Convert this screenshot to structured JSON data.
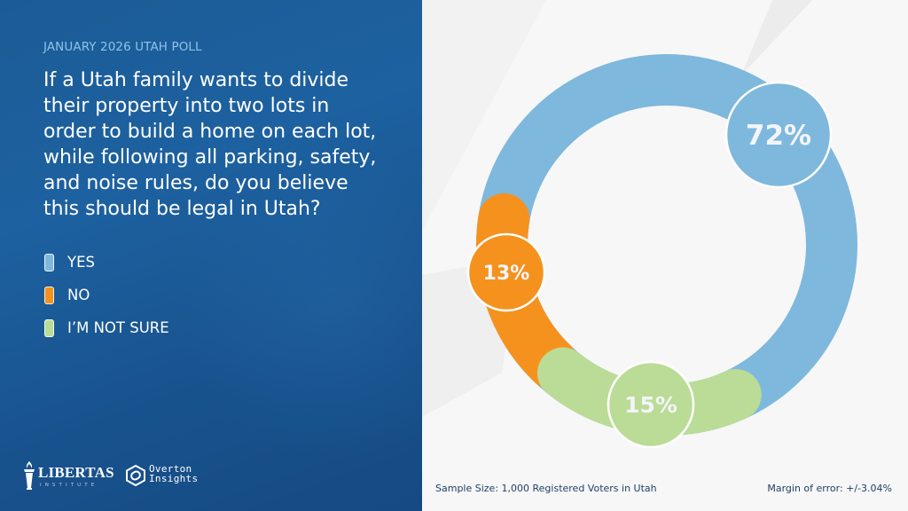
{
  "header": {
    "subtitle": "JANUARY 2026 UTAH POLL",
    "question_lines": [
      "If a Utah family wants to divide",
      "their property into two lots in",
      "order to build a home on each lot,",
      "while following all parking, safety,",
      "and noise rules, do you believe",
      "this should be legal in Utah?"
    ]
  },
  "legend": [
    {
      "label": "YES",
      "color": "#7fb8dd"
    },
    {
      "label": "NO",
      "color": "#f5921e"
    },
    {
      "label": "I’M NOT SURE",
      "color": "#badc96"
    }
  ],
  "logos": {
    "libertas_name": "LIBERTAS",
    "libertas_sub": "INSTITUTE",
    "overton_name": "Overton",
    "overton_sub": "Insights"
  },
  "footer": {
    "sample_size": "Sample Size: 1,000 Registered Voters in Utah",
    "margin_of_error": "Margin of error: +/-3.04%"
  },
  "chart_data": {
    "type": "pie",
    "variant": "donut",
    "title": "If a Utah family wants to divide their property into two lots in order to build a home on each lot, while following all parking, safety, and noise rules, do you believe this should be legal in Utah?",
    "categories": [
      "YES",
      "NO",
      "I’M NOT SURE"
    ],
    "values": [
      72,
      13,
      15
    ],
    "value_labels": [
      "72%",
      "13%",
      "15%"
    ],
    "colors": [
      "#7fb8dd",
      "#f5921e",
      "#badc96"
    ],
    "unit": "%",
    "legend_position": "left"
  }
}
